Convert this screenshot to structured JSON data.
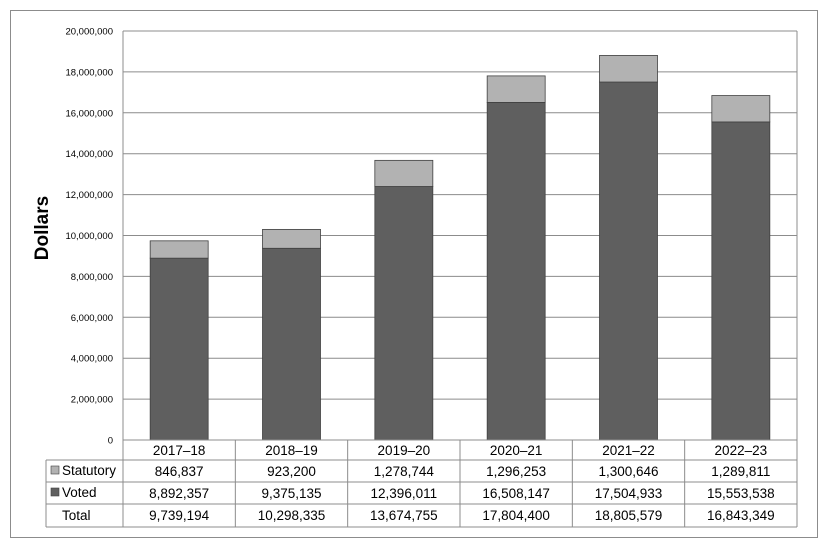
{
  "chart_data": {
    "type": "bar",
    "stacked": true,
    "ylabel": "Dollars",
    "xlabel": "",
    "title": "",
    "ylim": [
      0,
      20000000
    ],
    "yticks": [
      0,
      2000000,
      4000000,
      6000000,
      8000000,
      10000000,
      12000000,
      14000000,
      16000000,
      18000000,
      20000000
    ],
    "ytick_labels": [
      "0",
      "2,000,000",
      "4,000,000",
      "6,000,000",
      "8,000,000",
      "10,000,000",
      "12,000,000",
      "14,000,000",
      "16,000,000",
      "18,000,000",
      "20,000,000"
    ],
    "grid": true,
    "categories": [
      "2017–18",
      "2018–19",
      "2019–20",
      "2020–21",
      "2021–22",
      "2022–23"
    ],
    "series": [
      {
        "name": "Voted",
        "values": [
          8892357,
          9375135,
          12396011,
          16508147,
          17504933,
          15553538
        ],
        "labels": [
          "8,892,357",
          "9,375,135",
          "12,396,011",
          "16,508,147",
          "17,504,933",
          "15,553,538"
        ],
        "color": "#5f5f5f"
      },
      {
        "name": "Statutory",
        "values": [
          846837,
          923200,
          1278744,
          1296253,
          1300646,
          1289811
        ],
        "labels": [
          "846,837",
          "923,200",
          "1,278,744",
          "1,296,253",
          "1,300,646",
          "1,289,811"
        ],
        "color": "#b2b2b2"
      }
    ],
    "total": {
      "name": "Total",
      "labels": [
        "9,739,194",
        "10,298,335",
        "13,674,755",
        "17,804,400",
        "18,805,579",
        "16,843,349"
      ]
    },
    "legend_placement": "data-table"
  }
}
